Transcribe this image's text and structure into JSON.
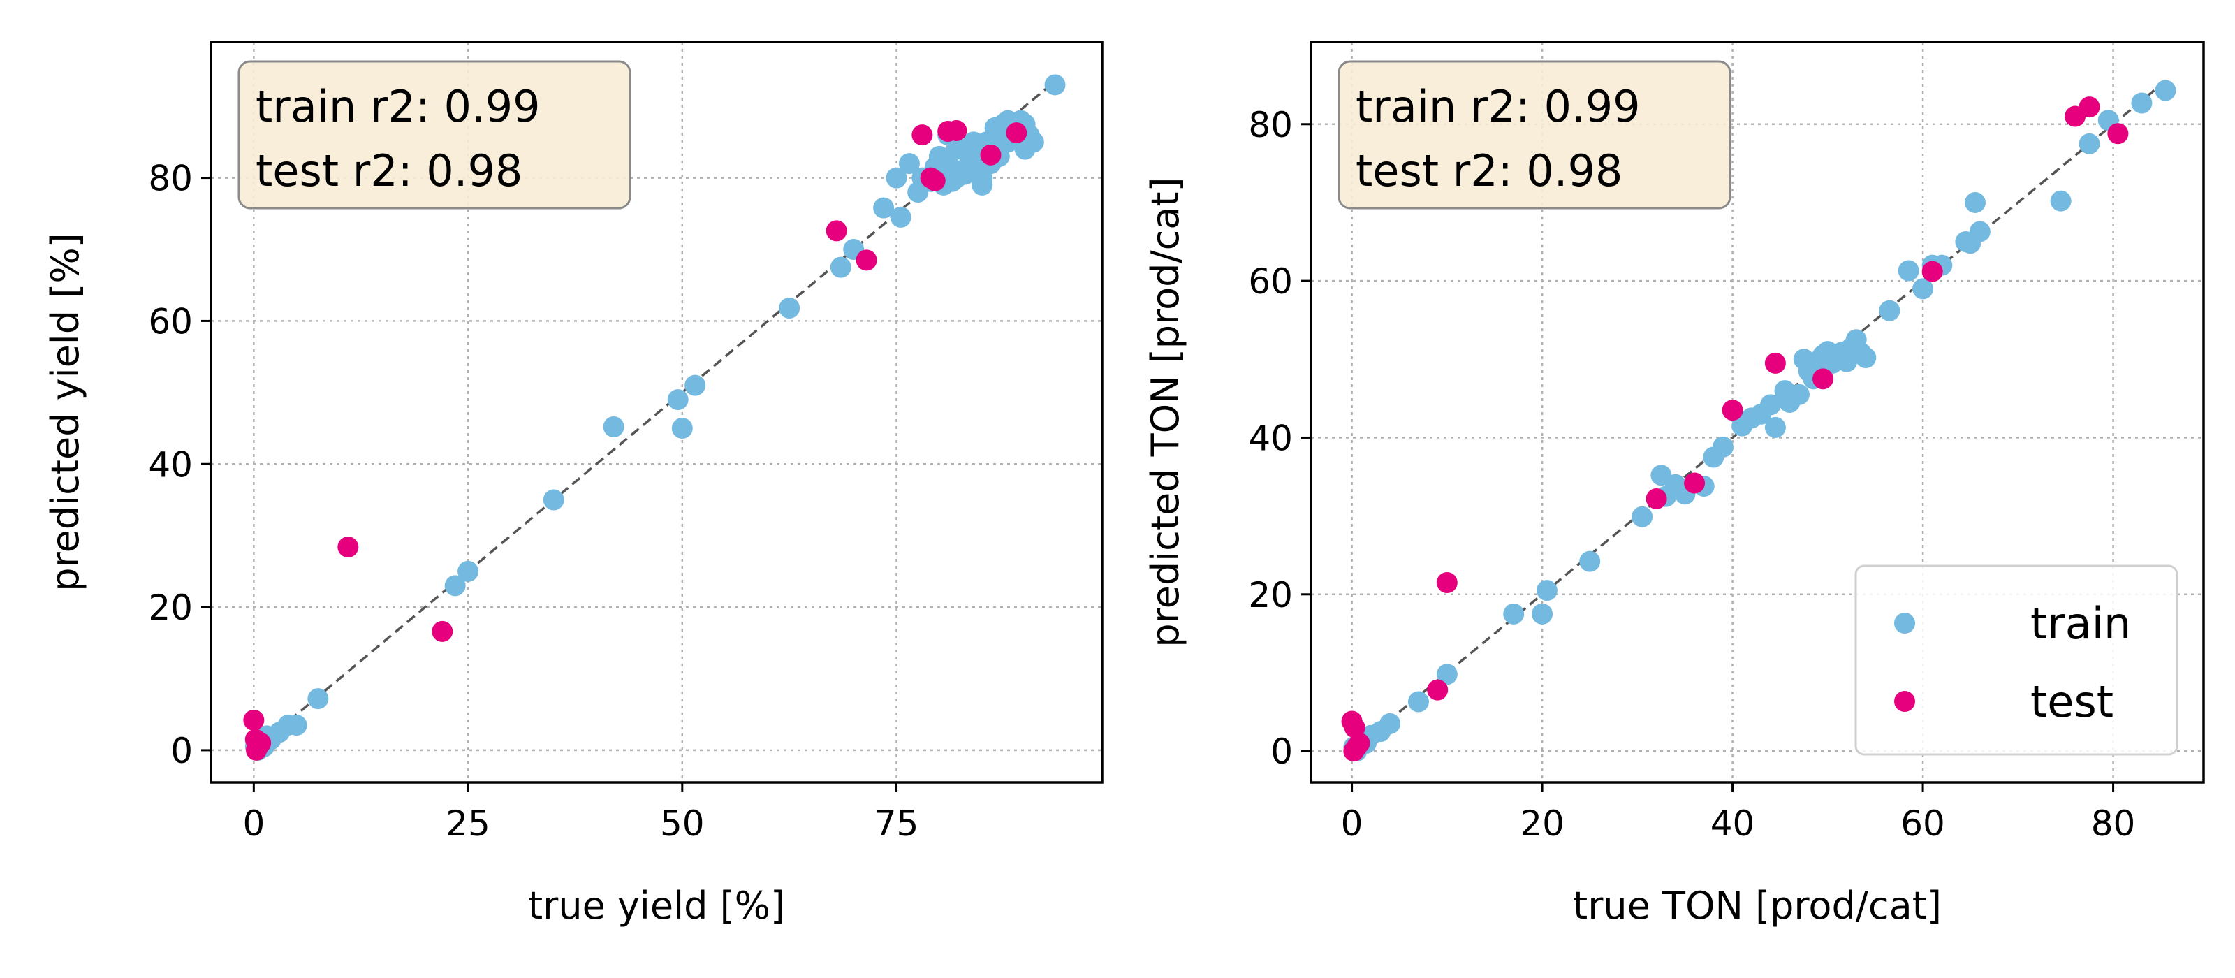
{
  "chart_data": [
    {
      "type": "scatter",
      "xlabel": "true yield [%]",
      "ylabel": "predicted yield [%]",
      "xlim": [
        -5,
        99
      ],
      "ylim": [
        -4.5,
        99
      ],
      "xticks": [
        0,
        25,
        50,
        75
      ],
      "yticks": [
        0,
        20,
        40,
        60,
        80
      ],
      "grid": true,
      "annotation": [
        "train r2: 0.99",
        "test r2: 0.98"
      ],
      "annotation_position": "top-left",
      "diagonal": true,
      "series": [
        {
          "name": "train",
          "color": "#74b9e0",
          "x": [
            0.2,
            0.5,
            0.8,
            1.2,
            1.5,
            2,
            3,
            4,
            5,
            7.5,
            23.5,
            25,
            35,
            42,
            49.5,
            50,
            51.5,
            62.5,
            68.5,
            70,
            73.5,
            75,
            75.5,
            76.5,
            77.5,
            78,
            79,
            79.5,
            80,
            80,
            80.5,
            81,
            81,
            81.5,
            82,
            82,
            82.5,
            83,
            83,
            83.5,
            84,
            84,
            84.5,
            85,
            85,
            85.5,
            86,
            86,
            86.5,
            87,
            87,
            87.5,
            88,
            88,
            88.5,
            89,
            89,
            89.5,
            90,
            90,
            90.5,
            91,
            93.5
          ],
          "y": [
            0.5,
            0,
            1,
            0.5,
            2,
            1.5,
            2.5,
            3.5,
            3.5,
            7.2,
            23,
            25,
            35,
            45.2,
            49,
            45,
            51,
            61.8,
            67.5,
            70,
            75.8,
            80,
            74.5,
            82,
            78,
            80,
            79.5,
            81.5,
            80,
            83,
            79,
            82,
            86,
            79.5,
            80,
            84,
            81,
            80.5,
            84,
            82,
            81.5,
            85,
            83.5,
            79,
            80,
            85,
            82,
            84,
            87,
            83,
            86,
            87.5,
            85,
            88,
            86,
            87,
            85.5,
            88,
            84,
            87.5,
            86,
            85,
            93
          ]
        },
        {
          "name": "test",
          "color": "#e6007e",
          "x": [
            0,
            0.2,
            0.5,
            0.3,
            0.8,
            11,
            22,
            68,
            71.5,
            78,
            79,
            79.5,
            81,
            82,
            86,
            89
          ],
          "y": [
            4.2,
            1.5,
            0.5,
            0,
            1,
            28.4,
            16.6,
            72.6,
            68.5,
            86,
            80,
            79.6,
            86.5,
            86.6,
            83.2,
            86.3
          ]
        }
      ]
    },
    {
      "type": "scatter",
      "xlabel": "true TON [prod/cat]",
      "ylabel": "predicted TON [prod/cat]",
      "xlim": [
        -4.3,
        89.5
      ],
      "ylim": [
        -4,
        90.5
      ],
      "xticks": [
        0,
        20,
        40,
        60,
        80
      ],
      "yticks": [
        0,
        20,
        40,
        60,
        80
      ],
      "grid": true,
      "annotation": [
        "train r2: 0.99",
        "test r2: 0.98"
      ],
      "annotation_position": "top-left",
      "legend_position": "bottom-right",
      "diagonal": true,
      "series": [
        {
          "name": "train",
          "color": "#74b9e0",
          "x": [
            0.2,
            0.5,
            1,
            1.5,
            2,
            3,
            4,
            7,
            10,
            17,
            20,
            20.5,
            25,
            30.5,
            32.5,
            33,
            34,
            35,
            37,
            38,
            39,
            41,
            42,
            43,
            44,
            44.5,
            45.5,
            46,
            47,
            47.5,
            48,
            48.5,
            49,
            49.5,
            50,
            50.5,
            51,
            51.5,
            52,
            52.5,
            53,
            53.5,
            54,
            56.5,
            58.5,
            60,
            61,
            62,
            64.5,
            65,
            65.5,
            66,
            74.5,
            77.5,
            79.5,
            83,
            85.5
          ],
          "y": [
            0.5,
            0,
            1,
            1,
            2,
            2.5,
            3.5,
            6.3,
            9.8,
            17.5,
            17.5,
            20.5,
            24.2,
            29.9,
            35.2,
            32.5,
            34,
            32.8,
            33.8,
            37.5,
            38.8,
            41.5,
            42.5,
            43,
            44.2,
            41.3,
            46,
            44.5,
            45.5,
            50,
            48.5,
            47.5,
            49.8,
            50.5,
            51,
            49.5,
            50.3,
            50.9,
            49.7,
            51.5,
            52.5,
            50.8,
            50.2,
            56.2,
            61.3,
            59,
            62,
            62,
            65,
            64.8,
            70,
            66.3,
            70.2,
            77.5,
            80.5,
            82.7,
            84.3
          ]
        },
        {
          "name": "test",
          "color": "#e6007e",
          "x": [
            0,
            0.3,
            0.5,
            0.2,
            0.8,
            10,
            9,
            32,
            36,
            40,
            44.5,
            49.5,
            61,
            76,
            77.5,
            80.5
          ],
          "y": [
            3.8,
            3,
            0.5,
            0,
            1,
            21.5,
            7.8,
            32.2,
            34.2,
            43.5,
            49.5,
            47.5,
            61.2,
            81,
            82.2,
            78.8
          ]
        }
      ]
    }
  ]
}
